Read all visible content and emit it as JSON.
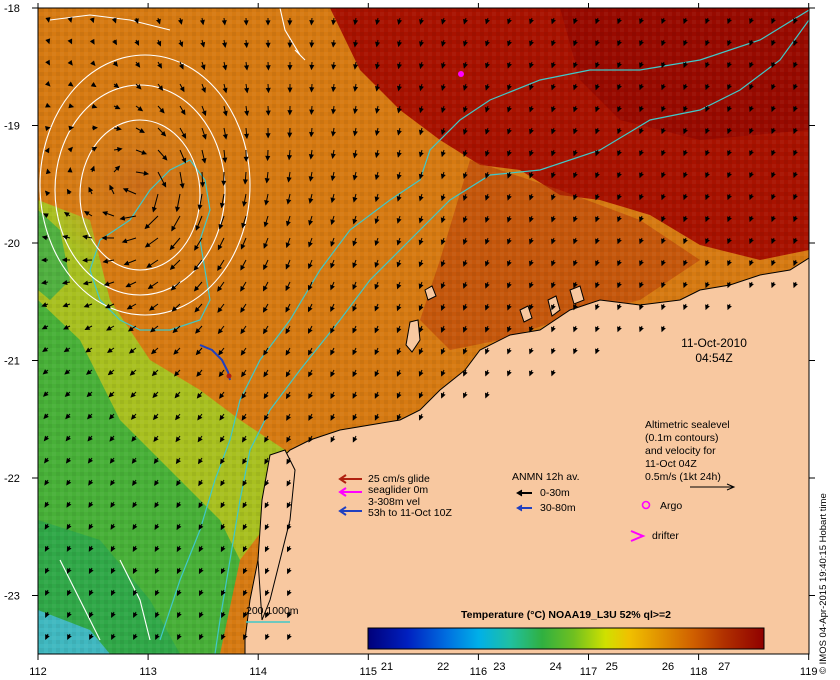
{
  "map": {
    "lon_ticks": [
      "112",
      "113",
      "114",
      "115",
      "116",
      "117",
      "118",
      "119"
    ],
    "lat_ticks": [
      "-18",
      "-19",
      "-20",
      "-21",
      "-22",
      "-23"
    ],
    "date_line1": "11-Oct-2010",
    "date_line2": "04:54Z",
    "credit": "© IMOS 04-Apr-2015 19:40:15 Hobart time"
  },
  "legend_glider": {
    "line1": "25 cm/s glide",
    "line2": "seaglider 0m",
    "line3": "3-308m vel",
    "line4": "53h to 11-Oct 10Z",
    "colors": {
      "glide": "#b02010",
      "seaglider": "#ff00ff",
      "vel": "#2040c0"
    }
  },
  "legend_anmn": {
    "title": "ANMN 12h av.",
    "row1": "0-30m",
    "row2": "30-80m"
  },
  "legend_altimetry": {
    "line1": "Altimetric sealevel",
    "line2": "(0.1m contours)",
    "line3": "and velocity for",
    "line4": "11-Oct 04Z",
    "line5": "0.5m/s (1kt 24h)"
  },
  "legend_markers": {
    "argo": "Argo",
    "drifter": "drifter",
    "marker_color": "#ff00ff"
  },
  "bathy_legend": {
    "label": "200  1000m",
    "color": "#40c0c0"
  },
  "colorbar": {
    "title": "Temperature (°C) NOAA19_L3U 52% ql>=2",
    "ticks": [
      "21",
      "22",
      "23",
      "24",
      "25",
      "26",
      "27"
    ]
  },
  "colors": {
    "land": "#f8c8a0",
    "deep_red": "#a01000",
    "orange": "#d07010",
    "yellow_green": "#c0d020",
    "green": "#40b030",
    "cyan_contour": "#40c8c8"
  }
}
